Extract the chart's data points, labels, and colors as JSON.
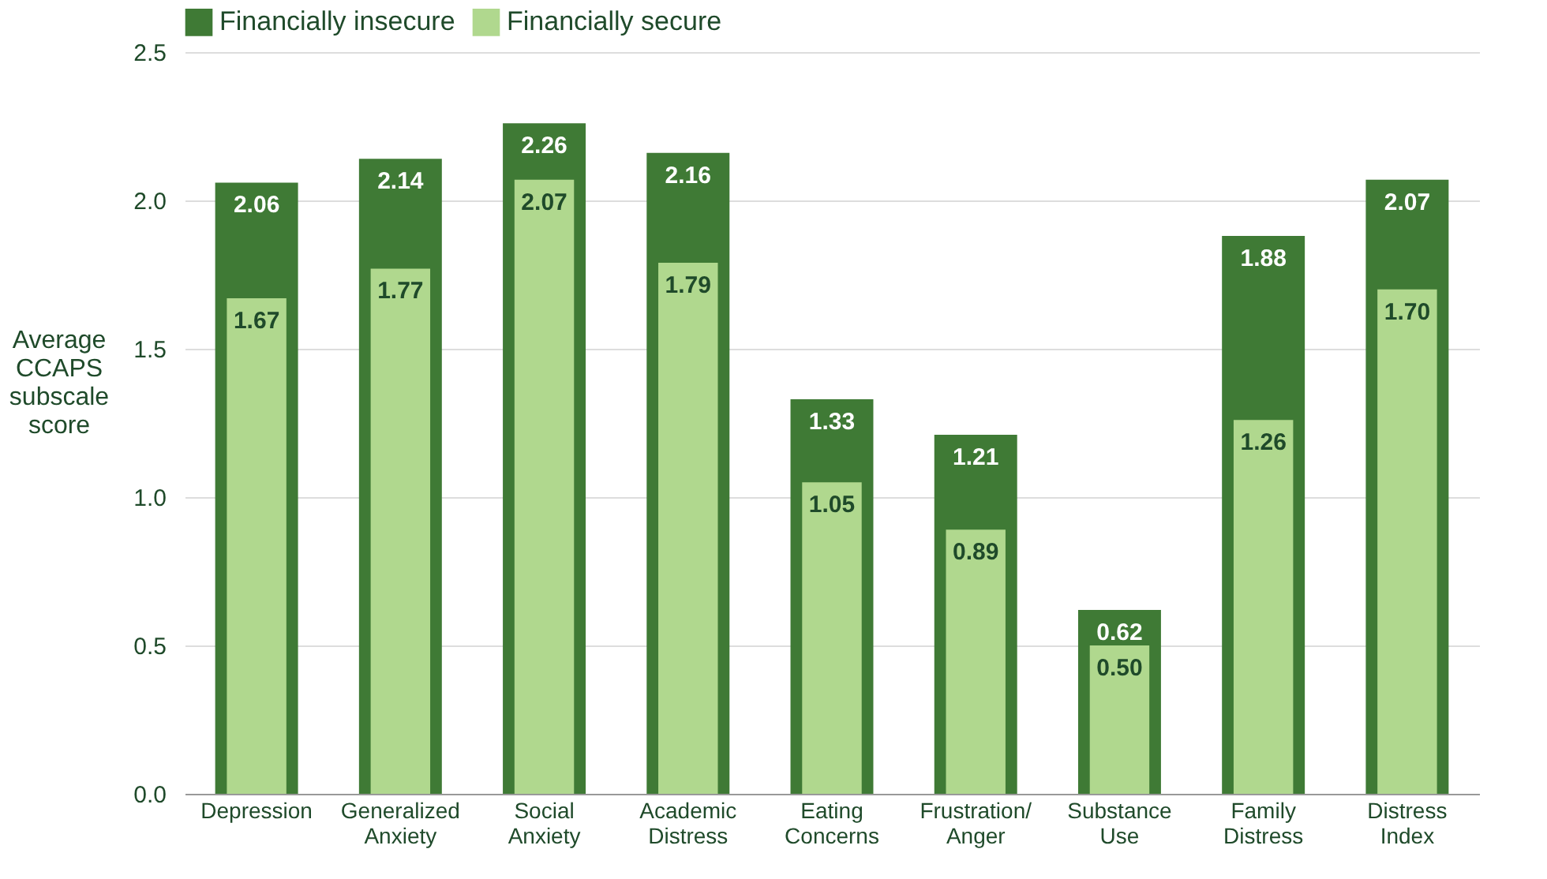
{
  "chart_data": {
    "type": "bar",
    "ylabel": "Average CCAPS subscale score",
    "categories": [
      "Depression",
      "Generalized Anxiety",
      "Social Anxiety",
      "Academic Distress",
      "Eating Concerns",
      "Frustration/ Anger",
      "Substance Use",
      "Family Distress",
      "Distress Index"
    ],
    "series": [
      {
        "name": "Financially insecure",
        "color": "#3f7a35",
        "values": [
          2.06,
          2.14,
          2.26,
          2.16,
          1.33,
          1.21,
          0.62,
          1.88,
          2.07
        ],
        "value_labels": [
          "2.06",
          "2.14",
          "2.26",
          "2.16",
          "1.33",
          "1.21",
          "0.62",
          "1.88",
          "2.07"
        ]
      },
      {
        "name": "Financially secure",
        "color": "#b0d88e",
        "values": [
          1.67,
          1.77,
          2.07,
          1.79,
          1.05,
          0.89,
          0.5,
          1.26,
          1.7
        ],
        "value_labels": [
          "1.67",
          "1.77",
          "2.07",
          "1.79",
          "1.05",
          "0.89",
          "0.50",
          "1.26",
          "1.70"
        ]
      }
    ],
    "ylim": [
      0,
      2.5
    ],
    "yticks": [
      {
        "value": 0,
        "label": "0.0"
      },
      0.5,
      {
        "value": 1,
        "label": "1.0"
      },
      1.5,
      {
        "value": 2,
        "label": "2.0"
      },
      2.5
    ],
    "grid": "y",
    "legend": "top"
  }
}
